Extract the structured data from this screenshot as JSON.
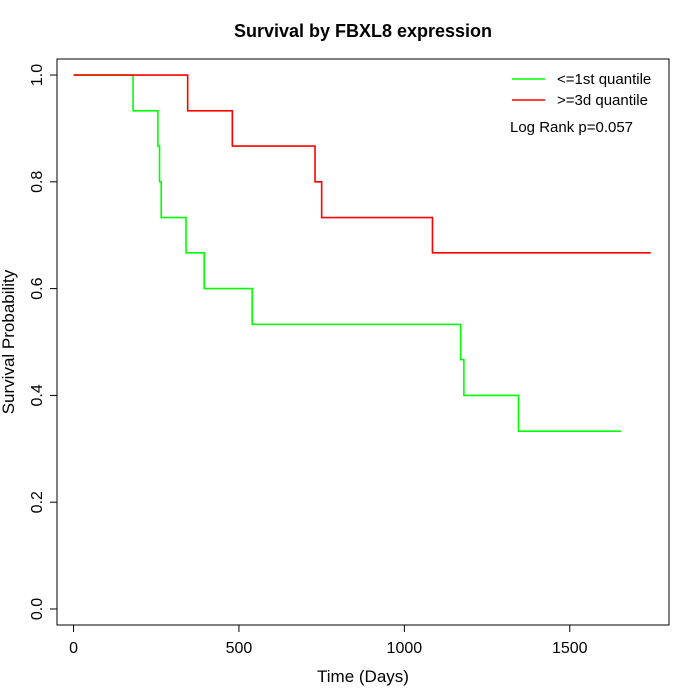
{
  "chart_data": {
    "type": "line",
    "subtype": "step",
    "title": "Survival by FBXL8 expression",
    "xlabel": "Time (Days)",
    "ylabel": "Survival Probability",
    "xlim": [
      -50,
      1800
    ],
    "ylim": [
      -0.03,
      1.03
    ],
    "xticks": [
      0,
      500,
      1000,
      1500
    ],
    "yticks": [
      0.0,
      0.2,
      0.4,
      0.6,
      0.8,
      1.0
    ],
    "xtick_labels": [
      "0",
      "500",
      "1000",
      "1500"
    ],
    "ytick_labels": [
      "0.0",
      "0.2",
      "0.4",
      "0.6",
      "0.8",
      "1.0"
    ],
    "grid": false,
    "legend_position": "top-right",
    "annotation": "Log Rank p=0.057",
    "series": [
      {
        "name": "<=1st quantile",
        "color": "#00ff00",
        "steps": [
          [
            0,
            1.0
          ],
          [
            180,
            0.933
          ],
          [
            255,
            0.867
          ],
          [
            260,
            0.8
          ],
          [
            265,
            0.733
          ],
          [
            340,
            0.667
          ],
          [
            395,
            0.6
          ],
          [
            540,
            0.533
          ],
          [
            1170,
            0.467
          ],
          [
            1180,
            0.4
          ],
          [
            1345,
            0.333
          ],
          [
            1655,
            0.333
          ]
        ]
      },
      {
        "name": ">=3d quantile",
        "color": "#ff0000",
        "steps": [
          [
            0,
            1.0
          ],
          [
            345,
            0.933
          ],
          [
            480,
            0.867
          ],
          [
            730,
            0.8
          ],
          [
            750,
            0.733
          ],
          [
            1085,
            0.667
          ],
          [
            1745,
            0.667
          ]
        ]
      }
    ]
  }
}
